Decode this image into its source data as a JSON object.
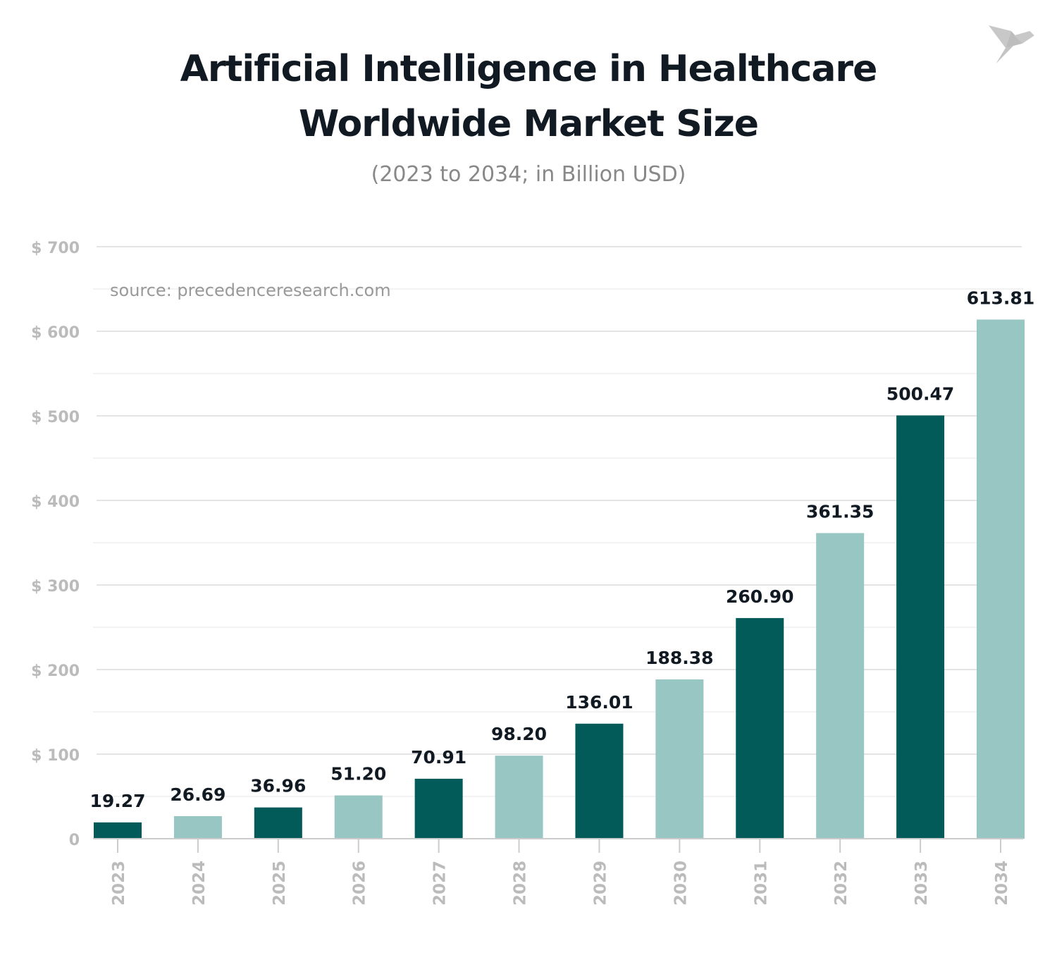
{
  "chart_data": {
    "type": "bar",
    "title": [
      "Artificial Intelligence in Healthcare",
      "Worldwide Market Size"
    ],
    "subtitle": "(2023 to 2034; in Billion USD)",
    "source": "source: precedenceresearch.com",
    "categories": [
      "2023",
      "2024",
      "2025",
      "2026",
      "2027",
      "2028",
      "2029",
      "2030",
      "2031",
      "2032",
      "2033",
      "2034"
    ],
    "values": [
      19.27,
      26.69,
      36.96,
      51.2,
      70.91,
      98.2,
      136.01,
      188.38,
      260.9,
      361.35,
      500.47,
      613.81
    ],
    "data_labels": [
      "19.27",
      "26.69",
      "36.96",
      "51.20",
      "70.91",
      "98.20",
      "136.01",
      "188.38",
      "260.90",
      "361.35",
      "500.47",
      "613.81"
    ],
    "ylim": [
      0,
      700
    ],
    "yticks": [
      0,
      100,
      200,
      300,
      400,
      500,
      600,
      700
    ],
    "ytick_labels": [
      "0",
      "$ 100",
      "$ 200",
      "$ 300",
      "$ 400",
      "$ 500",
      "$ 600",
      "$ 700"
    ],
    "xlabel": "",
    "ylabel": "",
    "grid": true,
    "colors": {
      "dark": "#025b58",
      "light": "#98c6c3",
      "label": "#111a22",
      "axis": "#bbbbbb"
    }
  }
}
